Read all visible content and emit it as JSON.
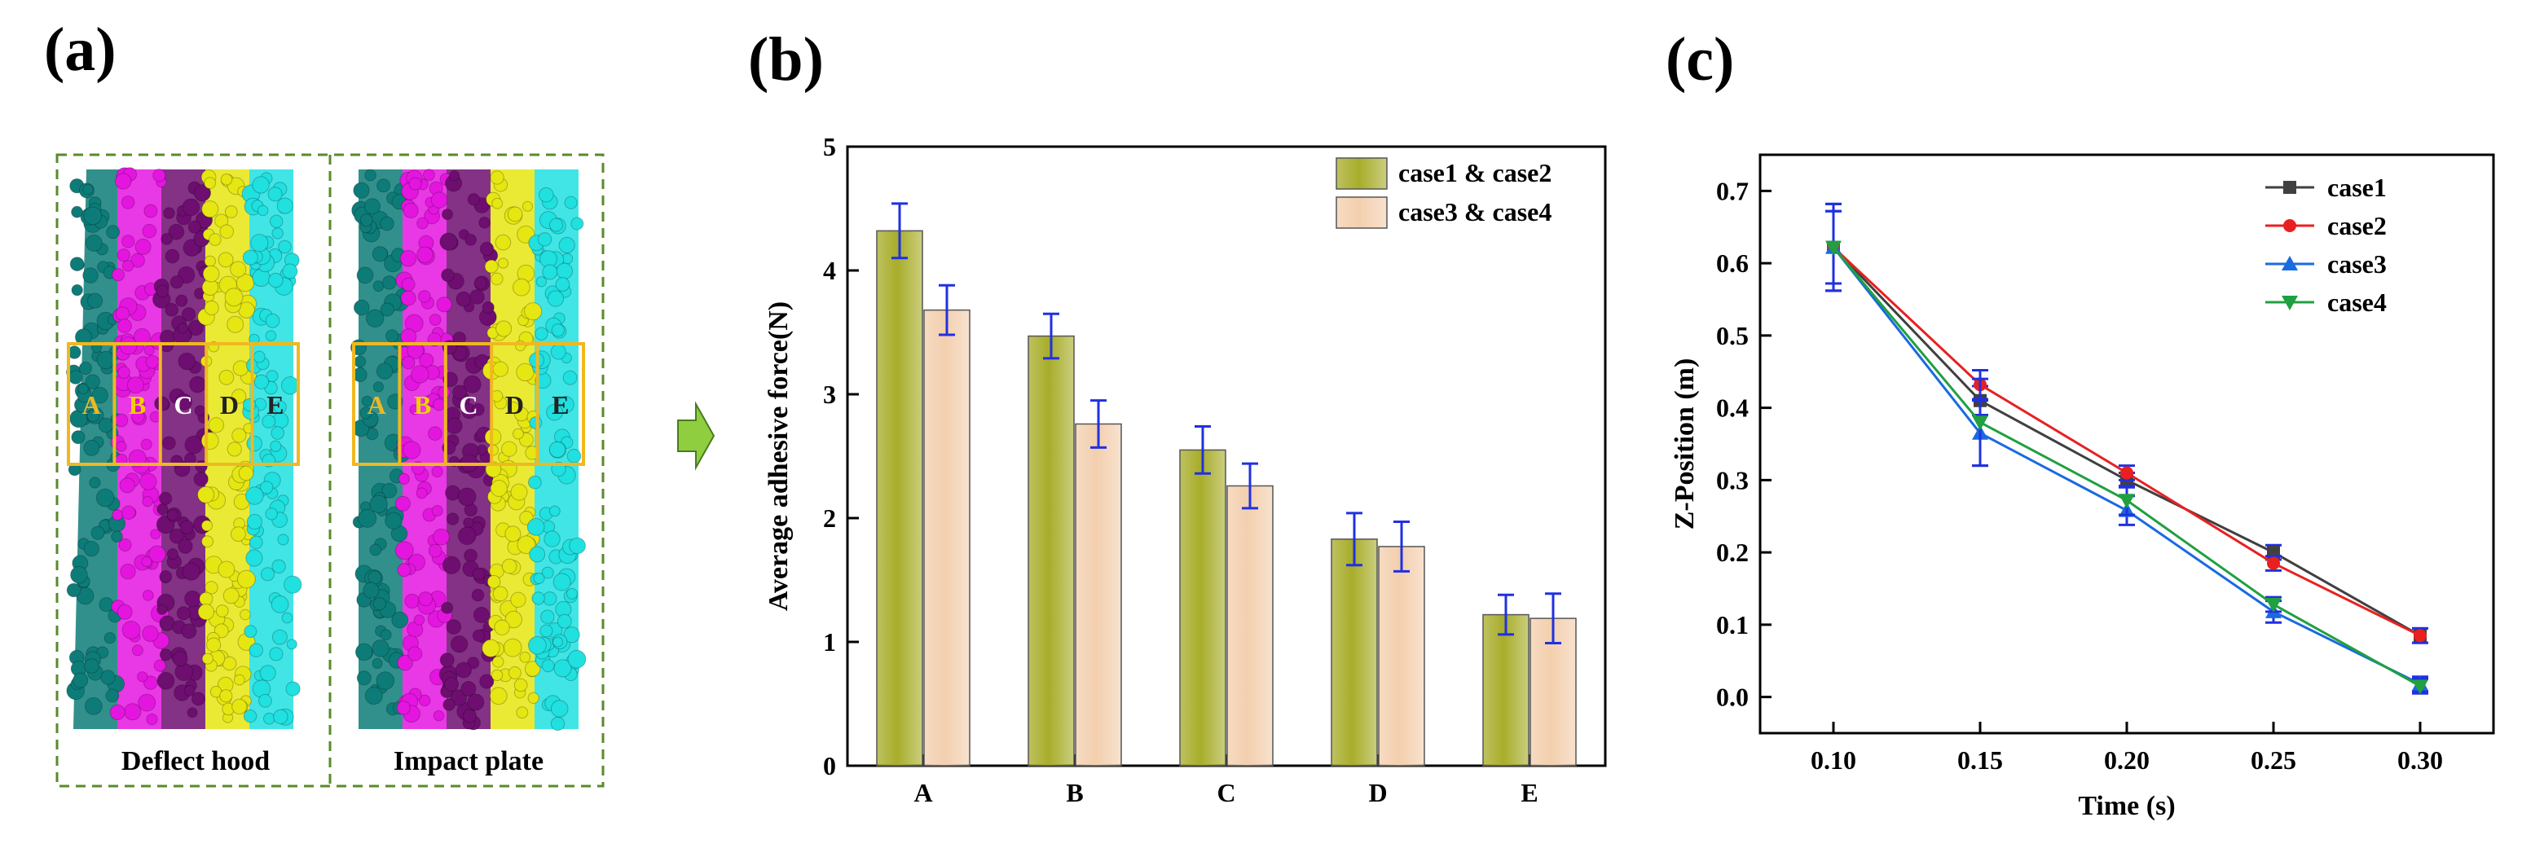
{
  "panels": {
    "a": "(a)",
    "b": "(b)",
    "c": "(c)"
  },
  "panel_a": {
    "captions": [
      "Deflect hood",
      "Impact plate"
    ],
    "zones": [
      "A",
      "B",
      "C",
      "D",
      "E"
    ],
    "zone_colors": [
      "#0d7c78",
      "#e515e0",
      "#6e0e70",
      "#e6e612",
      "#20e0e0"
    ],
    "zone_label_colors": [
      "#f0b820",
      "#f0d000",
      "#ffffff",
      "#222222",
      "#222222"
    ],
    "frame_color": "#5a8a2a",
    "box_color": "#f0b820",
    "arrow_color": "#8fcf3f"
  },
  "colors": {
    "bar1": "#a8ad2a",
    "bar2": "#f3cfae",
    "errbar": "#2030e0",
    "case1": "#404040",
    "case2": "#e82020",
    "case3": "#1a6ae0",
    "case4": "#20a040"
  },
  "chart_data": [
    {
      "type": "bar",
      "categories": [
        "A",
        "B",
        "C",
        "D",
        "E"
      ],
      "series": [
        {
          "name": "case1 & case2",
          "values": [
            4.32,
            3.47,
            2.55,
            1.83,
            1.22
          ],
          "errors": [
            0.22,
            0.18,
            0.19,
            0.21,
            0.16
          ]
        },
        {
          "name": "case3 & case4",
          "values": [
            3.68,
            2.76,
            2.26,
            1.77,
            1.19
          ],
          "errors": [
            0.2,
            0.19,
            0.18,
            0.2,
            0.2
          ]
        }
      ],
      "ylabel": "Average adhesive force(N)",
      "xlabel": "",
      "ylim": [
        0,
        5
      ],
      "yticks": [
        "0",
        "1",
        "2",
        "3",
        "4",
        "5"
      ],
      "legend": "top-right"
    },
    {
      "type": "line",
      "x": [
        0.1,
        0.15,
        0.2,
        0.25,
        0.3
      ],
      "xticks": [
        "0.10",
        "0.15",
        "0.20",
        "0.25",
        "0.30"
      ],
      "series": [
        {
          "name": "case1",
          "marker": "square",
          "values": [
            0.622,
            0.41,
            0.3,
            0.2,
            0.085
          ],
          "errors": [
            0.05,
            0.02,
            0.01,
            0.01,
            0.01
          ]
        },
        {
          "name": "case2",
          "marker": "circle",
          "values": [
            0.622,
            0.432,
            0.31,
            0.185,
            0.085
          ],
          "errors": [
            0.05,
            0.02,
            0.01,
            0.01,
            0.01
          ]
        },
        {
          "name": "case3",
          "marker": "triangle-up",
          "values": [
            0.622,
            0.365,
            0.258,
            0.118,
            0.018
          ],
          "errors": [
            0.06,
            0.045,
            0.02,
            0.015,
            0.01
          ]
        },
        {
          "name": "case4",
          "marker": "triangle-down",
          "values": [
            0.622,
            0.38,
            0.272,
            0.128,
            0.015
          ],
          "errors": [
            0.06,
            0.06,
            0.02,
            0.01,
            0.01
          ]
        }
      ],
      "xlabel": "Time (s)",
      "ylabel": "Z-Position (m)",
      "xlim": [
        0.075,
        0.325
      ],
      "ylim": [
        -0.05,
        0.75
      ],
      "yticks": [
        "0.0",
        "0.1",
        "0.2",
        "0.3",
        "0.4",
        "0.5",
        "0.6",
        "0.7"
      ],
      "legend": "top-right"
    }
  ]
}
